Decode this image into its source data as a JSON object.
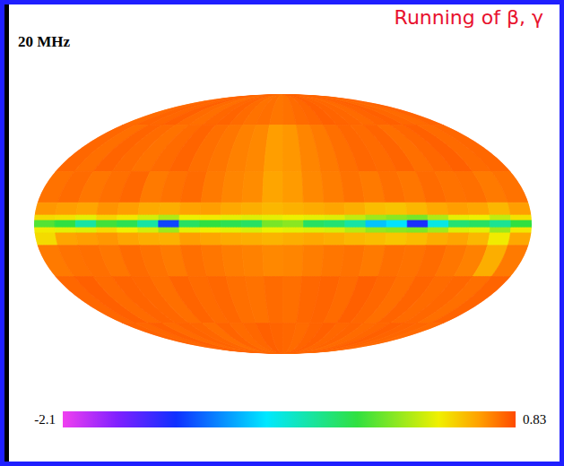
{
  "chart_data": {
    "type": "skymap",
    "title": "Running of β, γ",
    "subtitle": "20 MHz",
    "lon_edges": [
      180,
      165,
      150,
      135,
      120,
      105,
      90,
      75,
      60,
      45,
      30,
      15,
      0,
      -15,
      -30,
      -45,
      -60,
      -75,
      -90,
      -105,
      -120,
      -135,
      -150,
      -165,
      -180
    ],
    "lat_edges": [
      90,
      60,
      30,
      12,
      5,
      2,
      -2,
      -5,
      -12,
      -30,
      -60,
      -90
    ],
    "cells": [
      [
        0.74,
        0.76,
        0.75,
        0.77,
        0.74,
        0.73,
        0.75,
        0.76,
        0.74,
        0.72,
        0.73,
        0.71,
        0.72,
        0.74,
        0.75,
        0.77,
        0.76,
        0.75,
        0.74,
        0.76,
        0.77,
        0.75,
        0.74,
        0.76
      ],
      [
        0.75,
        0.73,
        0.76,
        0.74,
        0.72,
        0.74,
        0.76,
        0.73,
        0.71,
        0.68,
        0.66,
        0.6,
        0.62,
        0.67,
        0.7,
        0.73,
        0.75,
        0.74,
        0.76,
        0.73,
        0.75,
        0.77,
        0.74,
        0.75
      ],
      [
        0.72,
        0.74,
        0.71,
        0.73,
        0.75,
        0.7,
        0.72,
        0.74,
        0.7,
        0.67,
        0.65,
        0.58,
        0.61,
        0.66,
        0.69,
        0.72,
        0.7,
        0.73,
        0.71,
        0.74,
        0.72,
        0.73,
        0.7,
        0.72
      ],
      [
        0.62,
        0.6,
        0.58,
        0.63,
        0.6,
        0.56,
        0.55,
        0.59,
        0.6,
        0.57,
        0.55,
        0.52,
        0.54,
        0.56,
        0.58,
        0.55,
        0.5,
        0.48,
        0.52,
        0.57,
        0.6,
        0.58,
        0.52,
        0.6
      ],
      [
        0.4,
        0.38,
        0.3,
        0.42,
        0.36,
        0.25,
        0.15,
        0.32,
        0.35,
        0.3,
        0.28,
        0.3,
        0.32,
        0.3,
        0.28,
        0.2,
        0.1,
        0.05,
        0,
        0.15,
        0.3,
        0.32,
        0.2,
        0.38
      ],
      [
        -0.1,
        -0.2,
        -0.5,
        -0.15,
        -0.25,
        -0.5,
        -1.3,
        -0.3,
        -0.2,
        -0.25,
        -0.3,
        0,
        0.05,
        -0.3,
        -0.35,
        -0.5,
        -0.9,
        -0.8,
        -1.4,
        -0.7,
        -0.35,
        -0.3,
        -0.45,
        -0.2
      ],
      [
        0.35,
        0.3,
        0.28,
        0.4,
        0.33,
        0.25,
        0.1,
        0.3,
        0.34,
        0.3,
        0.27,
        0.32,
        0.3,
        0.28,
        0.26,
        0.18,
        0.08,
        0.05,
        0.02,
        0.12,
        0.28,
        0.3,
        0.1,
        0.36
      ],
      [
        0.4,
        0.58,
        0.6,
        0.62,
        0.58,
        0.55,
        0.54,
        0.6,
        0.58,
        0.56,
        0.55,
        0.53,
        0.55,
        0.57,
        0.55,
        0.52,
        0.5,
        0.47,
        0.5,
        0.55,
        0.58,
        0.52,
        0.35,
        0.57
      ],
      [
        0.7,
        0.72,
        0.73,
        0.71,
        0.74,
        0.72,
        0.7,
        0.73,
        0.71,
        0.69,
        0.68,
        0.66,
        0.67,
        0.69,
        0.71,
        0.72,
        0.7,
        0.73,
        0.72,
        0.74,
        0.71,
        0.68,
        0.55,
        0.7
      ],
      [
        0.75,
        0.77,
        0.74,
        0.76,
        0.75,
        0.73,
        0.76,
        0.74,
        0.75,
        0.73,
        0.72,
        0.74,
        0.73,
        0.75,
        0.76,
        0.74,
        0.77,
        0.75,
        0.73,
        0.76,
        0.74,
        0.75,
        0.73,
        0.76
      ],
      [
        0.76,
        0.75,
        0.77,
        0.74,
        0.76,
        0.75,
        0.73,
        0.76,
        0.74,
        0.75,
        0.77,
        0.76,
        0.75,
        0.74,
        0.76,
        0.77,
        0.75,
        0.76,
        0.74,
        0.75,
        0.77,
        0.76,
        0.75,
        0.74
      ]
    ],
    "colorbar": {
      "range": [
        -2.1,
        0.83
      ],
      "ticks": [
        -2.1,
        0.83
      ]
    }
  }
}
